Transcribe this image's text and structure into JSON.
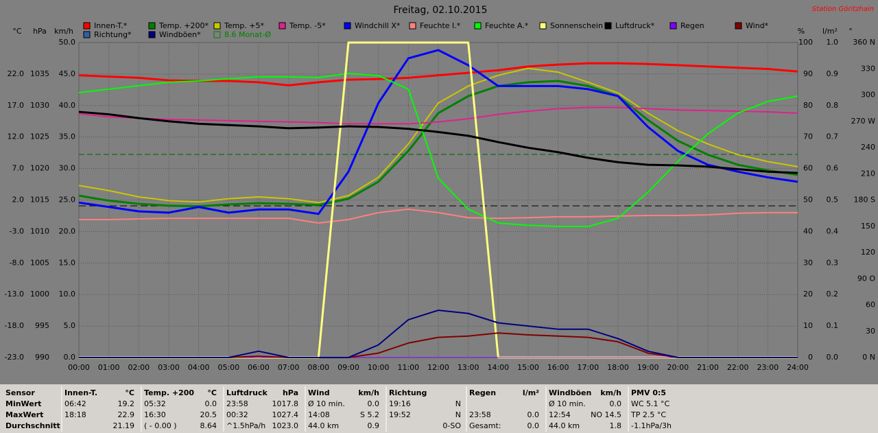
{
  "chart_data": {
    "type": "line",
    "title": "Freitag, 02.10.2015",
    "station": "Station Göritzhain",
    "categories": [
      "00:00",
      "01:00",
      "02:00",
      "03:00",
      "04:00",
      "05:00",
      "06:00",
      "07:00",
      "08:00",
      "09:00",
      "10:00",
      "11:00",
      "12:00",
      "13:00",
      "14:00",
      "15:00",
      "16:00",
      "17:00",
      "18:00",
      "19:00",
      "20:00",
      "21:00",
      "22:00",
      "23:00",
      "24:00"
    ],
    "grid": true,
    "grid_axis": 2,
    "axes": [
      {
        "label": "°C",
        "side": "left",
        "lim": [
          -23,
          27
        ],
        "ticks": [
          {
            "value": -23,
            "label": "-23.0"
          },
          {
            "value": -18,
            "label": "-18.0"
          },
          {
            "value": -13,
            "label": "-13.0"
          },
          {
            "value": -8,
            "label": "-8.0"
          },
          {
            "value": -3,
            "label": "-3.0"
          },
          {
            "value": 2,
            "label": "2.0"
          },
          {
            "value": 7,
            "label": "7.0"
          },
          {
            "value": 12,
            "label": "12.0"
          },
          {
            "value": 17,
            "label": "17.0"
          },
          {
            "value": 22,
            "label": "22.0"
          }
        ]
      },
      {
        "label": "hPa",
        "side": "left",
        "lim": [
          990,
          1040
        ],
        "ticks": [
          990,
          995,
          1000,
          1005,
          1010,
          1015,
          1020,
          1025,
          1030,
          1035
        ]
      },
      {
        "label": "km/h",
        "side": "left",
        "lim": [
          0,
          50
        ],
        "ticks": [
          {
            "value": 0,
            "label": "0.0"
          },
          {
            "value": 5,
            "label": "5.0"
          },
          {
            "value": 10,
            "label": "10.0"
          },
          {
            "value": 15,
            "label": "15.0"
          },
          {
            "value": 20,
            "label": "20.0"
          },
          {
            "value": 25,
            "label": "25.0"
          },
          {
            "value": 30,
            "label": "30.0"
          },
          {
            "value": 35,
            "label": "35.0"
          },
          {
            "value": 40,
            "label": "40.0"
          },
          {
            "value": 45,
            "label": "45.0"
          },
          {
            "value": 50,
            "label": "50.0"
          }
        ]
      },
      {
        "label": "%",
        "side": "right",
        "lim": [
          0,
          100
        ],
        "ticks": [
          0,
          10,
          20,
          30,
          40,
          50,
          60,
          70,
          80,
          90,
          100
        ]
      },
      {
        "label": "l/m²",
        "side": "right",
        "lim": [
          0,
          1
        ],
        "ticks": [
          {
            "value": 0,
            "label": "0.0"
          },
          0.1,
          0.2,
          0.3,
          0.4,
          0.5,
          0.6,
          0.7,
          0.8,
          0.9,
          {
            "value": 1,
            "label": "1.0"
          }
        ]
      },
      {
        "label": "°",
        "side": "right",
        "lim": [
          0,
          360
        ],
        "ticks": [
          {
            "value": 0,
            "label": "0 N"
          },
          30,
          60,
          {
            "value": 90,
            "label": "90 O"
          },
          120,
          150,
          {
            "value": 180,
            "label": "180 S"
          },
          210,
          240,
          {
            "value": 270,
            "label": "270 W"
          },
          300,
          330,
          {
            "value": 360,
            "label": "360 N"
          }
        ]
      }
    ],
    "series": [
      {
        "name": "Innen-T.*",
        "color": "#ff0000",
        "axis": 0,
        "width": 3,
        "values": [
          21.8,
          21.6,
          21.4,
          21.0,
          20.9,
          20.9,
          20.7,
          20.2,
          20.7,
          21.1,
          21.2,
          21.4,
          21.8,
          22.2,
          22.6,
          23.2,
          23.5,
          23.7,
          23.7,
          23.6,
          23.4,
          23.2,
          23.0,
          22.8,
          22.4
        ]
      },
      {
        "name": "Temp. +200*",
        "color": "#008000",
        "axis": 0,
        "width": 3,
        "values": [
          2.7,
          1.9,
          1.4,
          1.1,
          1.0,
          1.3,
          1.5,
          1.4,
          1.2,
          2.2,
          4.9,
          9.8,
          15.8,
          18.5,
          20.1,
          20.7,
          20.9,
          20.1,
          18.5,
          14.7,
          11.4,
          9.2,
          7.6,
          6.7,
          6.0
        ]
      },
      {
        "name": "Temp. +5*",
        "color": "#c8c800",
        "axis": 0,
        "width": 2,
        "values": [
          4.3,
          3.5,
          2.5,
          1.9,
          1.7,
          2.2,
          2.5,
          2.2,
          1.6,
          2.7,
          5.6,
          10.9,
          17.4,
          20.1,
          21.8,
          22.9,
          22.3,
          20.7,
          19.0,
          15.8,
          13.0,
          10.9,
          9.2,
          8.1,
          7.3
        ]
      },
      {
        "name": "Temp. -5*",
        "color": "#e0208e",
        "axis": 0,
        "width": 2,
        "values": [
          15.7,
          15.2,
          15.0,
          14.8,
          14.7,
          14.6,
          14.5,
          14.4,
          14.3,
          14.1,
          14.1,
          14.1,
          14.4,
          14.9,
          15.6,
          16.1,
          16.5,
          16.7,
          16.7,
          16.5,
          16.3,
          16.2,
          16.1,
          16.0,
          15.8
        ]
      },
      {
        "name": "Windchill X*",
        "color": "#0000ff",
        "axis": 0,
        "width": 3,
        "values": [
          1.6,
          0.9,
          0.2,
          0.0,
          0.9,
          0.0,
          0.5,
          0.5,
          -0.2,
          6.5,
          17.4,
          24.5,
          25.8,
          23.4,
          20.1,
          20.1,
          20.1,
          19.6,
          18.5,
          13.6,
          9.8,
          7.6,
          6.5,
          5.6,
          4.9
        ]
      },
      {
        "name": "Feuchte I.*",
        "color": "#ff8080",
        "axis": 3,
        "width": 2,
        "values": [
          43.8,
          43.8,
          44.0,
          44.2,
          44.2,
          44.2,
          44.2,
          44.2,
          42.7,
          43.8,
          46.0,
          47.1,
          46.0,
          44.4,
          44.2,
          44.4,
          44.7,
          44.7,
          44.9,
          45.1,
          45.1,
          45.3,
          45.8,
          46.0,
          46.0
        ]
      },
      {
        "name": "Feuchte A.*",
        "color": "#00ff00",
        "axis": 3,
        "width": 2,
        "values": [
          84.1,
          85.2,
          86.3,
          87.4,
          87.8,
          88.5,
          89.1,
          89.1,
          88.9,
          90.2,
          89.5,
          85.2,
          56.9,
          47.1,
          42.7,
          42.0,
          41.6,
          41.6,
          44.2,
          52.5,
          62.3,
          71.0,
          77.6,
          81.3,
          83.0
        ]
      },
      {
        "name": "Sonnenschein",
        "color": "#ffff80",
        "axis": 3,
        "width": 3,
        "values": [
          0,
          0,
          0,
          0,
          0,
          0,
          0,
          0,
          0,
          100,
          100,
          100,
          100,
          100,
          0,
          0,
          0,
          0,
          0,
          0,
          0,
          0,
          0,
          0,
          0
        ]
      },
      {
        "name": "Luftdruck*",
        "color": "#000000",
        "axis": 1,
        "width": 3,
        "values": [
          1029.0,
          1028.6,
          1028.0,
          1027.5,
          1027.1,
          1026.9,
          1026.7,
          1026.4,
          1026.5,
          1026.7,
          1026.6,
          1026.3,
          1025.8,
          1025.2,
          1024.2,
          1023.3,
          1022.6,
          1021.7,
          1021.0,
          1020.6,
          1020.5,
          1020.3,
          1019.9,
          1019.5,
          1019.3
        ]
      },
      {
        "name": "Regen",
        "color": "#8000ff",
        "axis": 4,
        "width": 1,
        "values": [
          0,
          0,
          0,
          0,
          0,
          0,
          0,
          0,
          0,
          0,
          0,
          0,
          0,
          0,
          0,
          0,
          0,
          0,
          0,
          0,
          0,
          0,
          0,
          0,
          0
        ]
      },
      {
        "name": "Wind*",
        "color": "#800000",
        "axis": 2,
        "width": 2,
        "values": [
          0,
          0,
          0,
          0,
          0,
          0,
          0.2,
          0,
          0,
          0,
          0.7,
          2.3,
          3.2,
          3.4,
          3.9,
          3.6,
          3.4,
          3.2,
          2.5,
          0.7,
          0,
          0,
          0,
          0,
          0
        ]
      },
      {
        "name": "Richtung*",
        "color": "#2f5fa0",
        "axis": 5
      },
      {
        "name": "Windböen*",
        "color": "#000080",
        "axis": 2,
        "width": 2,
        "values": [
          0,
          0,
          0,
          0,
          0,
          0,
          1.0,
          0,
          0,
          0,
          2.0,
          6.0,
          7.5,
          7.0,
          5.5,
          5.0,
          4.5,
          4.5,
          3.0,
          1.0,
          0,
          0,
          0,
          0,
          0
        ]
      },
      {
        "name": "8.6 Monat-Ø",
        "color": "#008000",
        "hollow": true
      }
    ]
  },
  "table": {
    "panels": [
      {
        "header": [
          "Sensor"
        ],
        "bold": true,
        "rows": [
          [
            "MinWert"
          ],
          [
            "MaxWert"
          ],
          [
            "Durchschnitt"
          ]
        ]
      },
      {
        "header": [
          "Innen-T.",
          "°C"
        ],
        "rows": [
          [
            "06:42",
            "19.2"
          ],
          [
            "18:18",
            "22.9"
          ],
          [
            null,
            "21.19"
          ]
        ]
      },
      {
        "header": [
          "Temp. +200",
          "°C"
        ],
        "rows": [
          [
            "05:32",
            "0.0"
          ],
          [
            "16:30",
            "20.5"
          ],
          [
            "( - 0.00 )",
            "8.64"
          ]
        ]
      },
      {
        "header": [
          "Luftdruck",
          "hPa"
        ],
        "rows": [
          [
            "23:58",
            "1017.8"
          ],
          [
            "00:32",
            "1027.4"
          ],
          [
            "^1.5hPa/h",
            "1023.0"
          ]
        ]
      },
      {
        "header": [
          "Wind",
          "km/h"
        ],
        "rows": [
          [
            "Ø 10 min.",
            "0.0"
          ],
          [
            "14:08",
            "S 5.2"
          ],
          [
            "44.0 km",
            "0.9"
          ]
        ]
      },
      {
        "header": [
          "Richtung"
        ],
        "rows": [
          [
            "19:16",
            "N"
          ],
          [
            "19:52",
            "N"
          ],
          [
            null,
            "0-SO"
          ]
        ]
      },
      {
        "header": [
          "Regen",
          "l/m²"
        ],
        "rows": [
          [],
          [
            "23:58",
            "0.0"
          ],
          [
            "Gesamt:",
            "0.0"
          ]
        ]
      },
      {
        "header": [
          "Windböen",
          "km/h"
        ],
        "rows": [
          [
            "Ø 10 min.",
            "0.0"
          ],
          [
            "12:54",
            "NO 14.5"
          ],
          [
            "44.0 km",
            "1.8"
          ]
        ]
      },
      {
        "header": [
          "PMV 0:5"
        ],
        "rows": [
          [
            "WC 5.1 °C"
          ],
          [
            "TP 2.5 °C"
          ],
          [
            "-1.1hPa/3h"
          ]
        ]
      }
    ]
  }
}
